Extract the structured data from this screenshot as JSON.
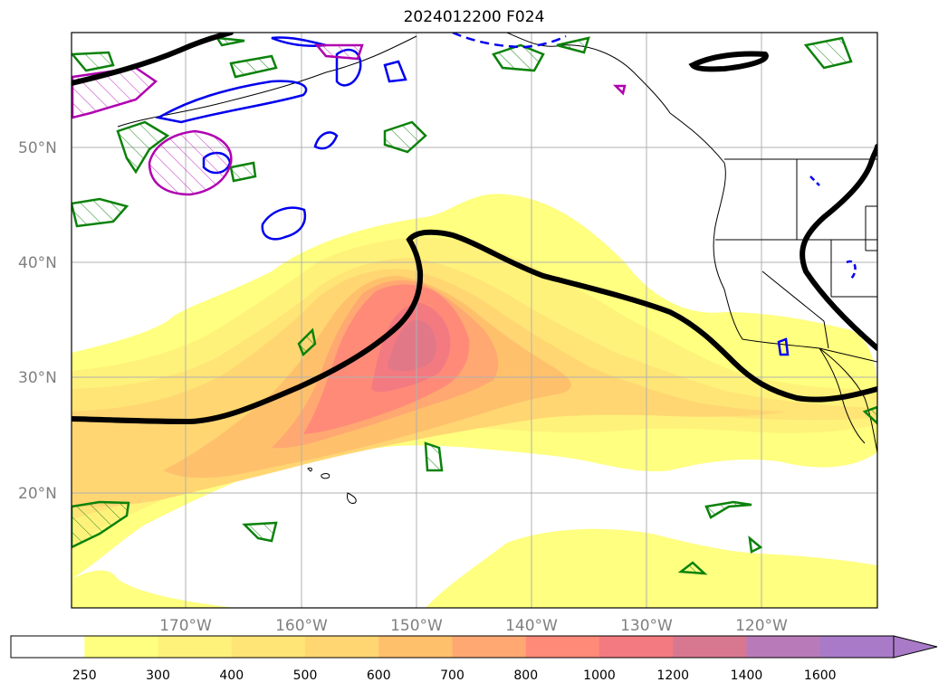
{
  "title": "2024012200 F024",
  "map": {
    "lat_labels": [
      "50°N",
      "40°N",
      "30°N",
      "20°N"
    ],
    "lon_labels": [
      "170°W",
      "160°W",
      "150°W",
      "140°W",
      "130°W",
      "120°W"
    ]
  },
  "colorbar": {
    "levels": [
      "250",
      "300",
      "400",
      "500",
      "600",
      "700",
      "800",
      "1000",
      "1200",
      "1400",
      "1600"
    ],
    "colors": [
      "#ffffff",
      "#ffff80",
      "#fff27a",
      "#ffe476",
      "#ffd672",
      "#ffc06c",
      "#ffa872",
      "#ff8a78",
      "#f27a80",
      "#d87890",
      "#b87ab8",
      "#a87ac8"
    ],
    "extend": "max"
  }
}
